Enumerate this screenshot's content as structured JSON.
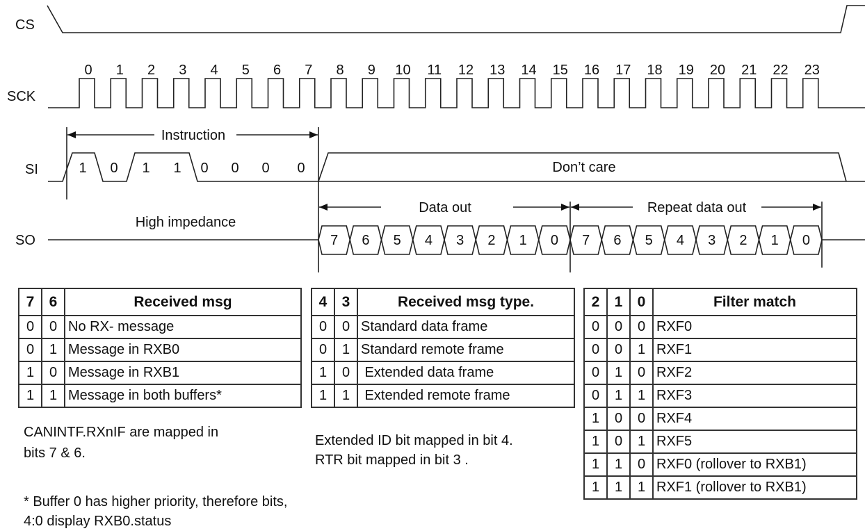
{
  "signals": {
    "cs": "CS",
    "sck": "SCK",
    "si": "SI",
    "so": "SO"
  },
  "clock_numbers": [
    "0",
    "1",
    "2",
    "3",
    "4",
    "5",
    "6",
    "7",
    "8",
    "9",
    "10",
    "11",
    "12",
    "13",
    "14",
    "15",
    "16",
    "17",
    "18",
    "19",
    "20",
    "21",
    "22",
    "23"
  ],
  "si_bits": [
    "1",
    "0",
    "1",
    "1",
    "0",
    "0",
    "0",
    "0"
  ],
  "si_dont_care": "Don’t care",
  "instruction_label": "Instruction",
  "so_high_impedance": "High impedance",
  "data_out_label": "Data out",
  "repeat_data_out_label": "Repeat data out",
  "so_bits": [
    "7",
    "6",
    "5",
    "4",
    "3",
    "2",
    "1",
    "0",
    "7",
    "6",
    "5",
    "4",
    "3",
    "2",
    "1",
    "0"
  ],
  "table_received_msg": {
    "headers": [
      "7",
      "6",
      "Received msg"
    ],
    "rows": [
      [
        "0",
        "0",
        "No RX- message"
      ],
      [
        "0",
        "1",
        "Message in RXB0"
      ],
      [
        "1",
        "0",
        "Message in RXB1"
      ],
      [
        "1",
        "1",
        "Message in both buffers*"
      ]
    ]
  },
  "table_msg_type": {
    "headers": [
      "4",
      "3",
      "Received msg type."
    ],
    "rows": [
      [
        "0",
        "0",
        "Standard data frame"
      ],
      [
        "0",
        "1",
        "Standard remote frame"
      ],
      [
        "1",
        "0",
        " Extended data frame"
      ],
      [
        "1",
        "1",
        " Extended remote frame"
      ]
    ]
  },
  "table_filter_match": {
    "headers": [
      "2",
      "1",
      "0",
      "Filter match"
    ],
    "rows": [
      [
        "0",
        "0",
        "0",
        "RXF0"
      ],
      [
        "0",
        "0",
        "1",
        "RXF1"
      ],
      [
        "0",
        "1",
        "0",
        "RXF2"
      ],
      [
        "0",
        "1",
        "1",
        "RXF3"
      ],
      [
        "1",
        "0",
        "0",
        "RXF4"
      ],
      [
        "1",
        "0",
        "1",
        "RXF5"
      ],
      [
        "1",
        "1",
        "0",
        "RXF0 (rollover to RXB1)"
      ],
      [
        "1",
        "1",
        "1",
        "RXF1 (rollover to RXB1)"
      ]
    ]
  },
  "notes": {
    "canintf_1": " CANINTF.RXnIF  are mapped in",
    "canintf_2": "bits 7 &  6.",
    "ext_1": "Extended ID bit mapped in bit 4.",
    "ext_2": "RTR bit mapped in bit  3 .",
    "buffer_1": "* Buffer 0 has higher priority, therefore  bits,",
    "buffer_2": " 4:0 display RXB0.status"
  }
}
